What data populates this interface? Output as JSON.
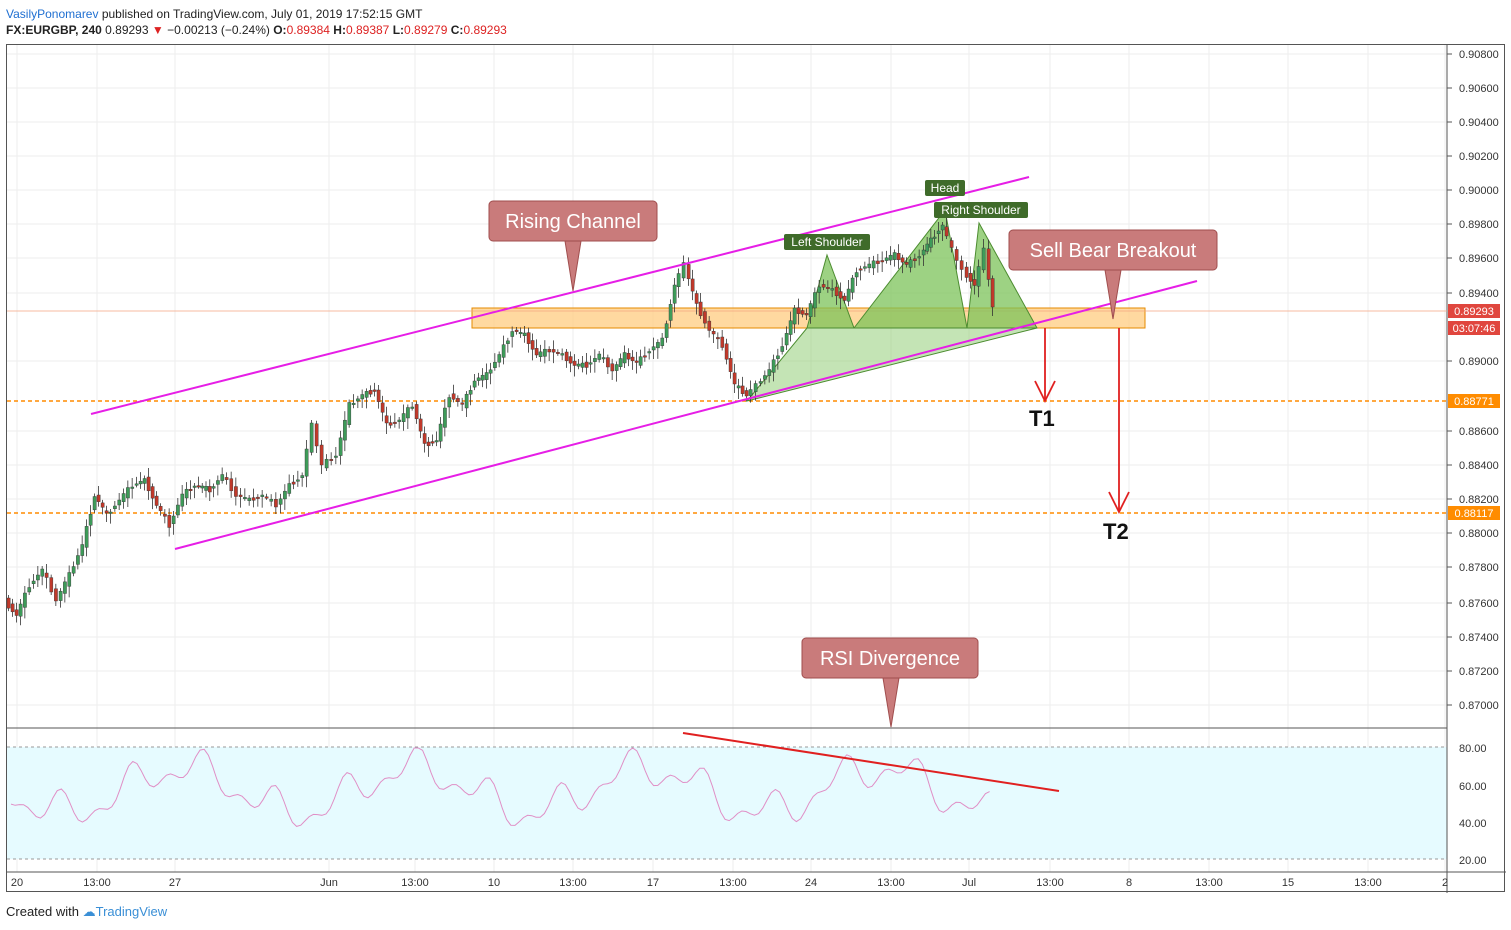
{
  "header": {
    "author": "VasilyPonomarev",
    "published": "published on TradingView.com, July 01, 2019 17:52:15 GMT",
    "symbol": "FX:EURGBP, 240",
    "price": "0.89293",
    "change_arrow": "▼",
    "change": "−0.00213 (−0.24%)",
    "o_label": "O:",
    "o_value": "0.89384",
    "h_label": "H:",
    "h_value": "0.89387",
    "l_label": "L:",
    "l_value": "0.89279",
    "c_label": "C:",
    "c_value": "0.89293"
  },
  "price_axis": [
    "0.90800",
    "0.90600",
    "0.90400",
    "0.90200",
    "0.90000",
    "0.89800",
    "0.89600",
    "0.89400",
    "0.89000",
    "0.88600",
    "0.88400",
    "0.88200",
    "0.88000",
    "0.87800",
    "0.87600",
    "0.87400",
    "0.87200",
    "0.87000"
  ],
  "price_tags": {
    "current": "0.89293",
    "countdown": "03:07:46",
    "level1": "0.88771",
    "level2": "0.88117"
  },
  "rsi_axis": [
    "80.00",
    "60.00",
    "40.00",
    "20.00"
  ],
  "time_axis": [
    "20",
    "13:00",
    "27",
    "Jun",
    "13:00",
    "10",
    "13:00",
    "17",
    "13:00",
    "24",
    "13:00",
    "Jul",
    "13:00",
    "8",
    "13:00",
    "15",
    "13:00",
    "2"
  ],
  "annotations": {
    "rising_channel": "Rising Channel",
    "sell_breakout": "Sell Bear Breakout",
    "rsi_divergence": "RSI Divergence",
    "head": "Head",
    "left_shoulder": "Left Shoulder",
    "right_shoulder": "Right Shoulder",
    "t1": "T1",
    "t2": "T2"
  },
  "footer": {
    "created_with": "Created with",
    "brand": "TradingView"
  },
  "colors": {
    "up": "#3e9b59",
    "down": "#c0392b",
    "channel": "#e61ee6",
    "level": "#ff8c00",
    "callout": "#c97b7b",
    "tag": "#3f6b2a",
    "pattern": "#7cc35a",
    "rsi_bg": "#e6fbff"
  },
  "chart_data": {
    "type": "candlestick",
    "symbol": "FX:EURGBP",
    "timeframe": "240",
    "ylim": [
      0.869,
      0.909
    ],
    "levels": [
      0.88771,
      0.88117
    ],
    "current_price": 0.89293,
    "rsi_range": [
      20,
      80
    ]
  }
}
